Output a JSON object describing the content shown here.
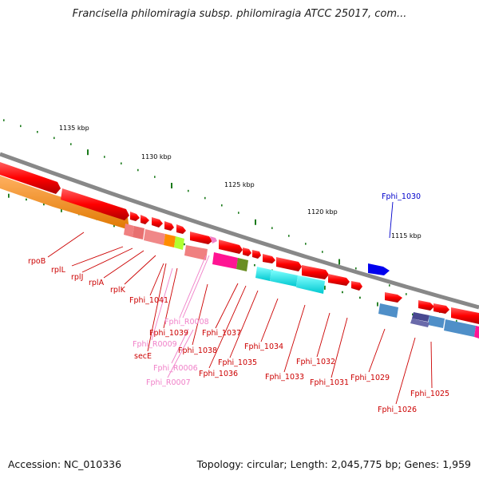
{
  "title": "Francisella philomiragia subsp. philomiragia ATCC 25017, com...",
  "footer": {
    "accession": "Accession: NC_010336",
    "summary": "Topology: circular; Length: 2,045,775 bp; Genes: 1,959"
  },
  "ruler_labels": [
    "1135 kbp",
    "1130 kbp",
    "1125 kbp",
    "1120 kbp",
    "1115 kbp"
  ],
  "gene_labels": [
    {
      "text": "rpoB",
      "color": "#cc0000"
    },
    {
      "text": "rplL",
      "color": "#cc0000"
    },
    {
      "text": "rplJ",
      "color": "#cc0000"
    },
    {
      "text": "rplA",
      "color": "#cc0000"
    },
    {
      "text": "rplK",
      "color": "#cc0000"
    },
    {
      "text": "Fphi_1041",
      "color": "#cc0000"
    },
    {
      "text": "Fphi_R0008",
      "color": "#f080c8"
    },
    {
      "text": "Fphi_1039",
      "color": "#cc0000"
    },
    {
      "text": "Fphi_R0009",
      "color": "#f080c8"
    },
    {
      "text": "secE",
      "color": "#cc0000"
    },
    {
      "text": "Fphi_1037",
      "color": "#cc0000"
    },
    {
      "text": "Fphi_1038",
      "color": "#cc0000"
    },
    {
      "text": "Fphi_1034",
      "color": "#cc0000"
    },
    {
      "text": "Fphi_1035",
      "color": "#cc0000"
    },
    {
      "text": "Fphi_R0006",
      "color": "#f080c8"
    },
    {
      "text": "Fphi_1036",
      "color": "#cc0000"
    },
    {
      "text": "Fphi_R0007",
      "color": "#f080c8"
    },
    {
      "text": "Fphi_1033",
      "color": "#cc0000"
    },
    {
      "text": "Fphi_1032",
      "color": "#cc0000"
    },
    {
      "text": "Fphi_1031",
      "color": "#cc0000"
    },
    {
      "text": "Fphi_1029",
      "color": "#cc0000"
    },
    {
      "text": "Fphi_1030",
      "color": "#0000cc"
    },
    {
      "text": "Fphi_1025",
      "color": "#cc0000"
    },
    {
      "text": "Fphi_1026",
      "color": "#cc0000"
    }
  ],
  "colors": {
    "cds": "#ff0000",
    "rrna": "#f080c8",
    "backbone": "#888888",
    "ruler_dots": "#1a7a1a",
    "orange": "#ff8c00",
    "cyan": "#00e5ee",
    "steelblue": "#4f8fc8",
    "slate": "#484890",
    "olive": "#6b8e23",
    "magenta": "#ff1493",
    "blue": "#0000ee"
  }
}
